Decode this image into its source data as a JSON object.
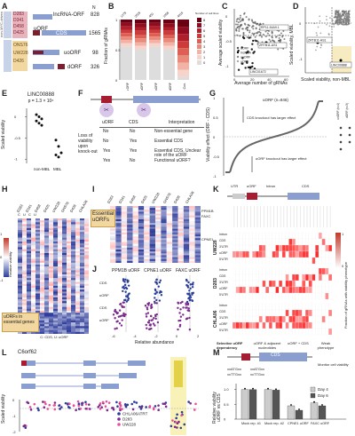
{
  "panels": {
    "A": {
      "label": "A",
      "non_myc_driven": "non-MYC-driven",
      "mbl_label": "MBL",
      "myc_driven": "MYC-driven",
      "group1": [
        "D283",
        "D341",
        "D458",
        "D425"
      ],
      "group2": [
        "ONS76",
        "UW228",
        "D426"
      ],
      "n_header": "N",
      "rows": [
        {
          "name": "lncRNA-ORF",
          "n": "828"
        },
        {
          "name": "uORF",
          "n": "1565"
        },
        {
          "name": "CDS",
          "n": ""
        },
        {
          "name": "uoORF",
          "n": "98"
        },
        {
          "name": "dORF",
          "n": "326"
        }
      ]
    },
    "B": {
      "label": "B",
      "ylabel": "Fraction of gRNAs",
      "yticks": [
        "1",
        "0.5",
        "0"
      ],
      "top_counts": [
        "1278",
        "2528",
        "450",
        "1058",
        "4018"
      ],
      "categories": [
        "lncRNA ORF",
        "uORF",
        "uoORF",
        "dORF",
        "Pos. Con."
      ],
      "legend_title": "Number of cell lines",
      "legend": [
        "8",
        "7",
        "6",
        "5",
        "4",
        "3",
        "2",
        "1",
        "0"
      ]
    },
    "C": {
      "label": "C",
      "ylabel": "Average scaled viability",
      "xlabel": "Average number of gRNAs",
      "yticks": [
        "0",
        "-0.5",
        "-1"
      ],
      "xticks": [
        "0",
        "20",
        "40",
        "60"
      ],
      "legend": [
        "dORF",
        "lncRNA",
        "uoORF",
        "uORF"
      ],
      "annotations": [
        "RP11-54A9.1",
        "ZRTB11-AS1",
        "LINC01672"
      ]
    },
    "D": {
      "label": "D",
      "ylabel": "Scaled viability, MBL",
      "xlabel": "Scaled viability, non-MBL",
      "annotations": [
        "ZRTB11-AS1",
        "LINC00888"
      ],
      "ticks": [
        "0",
        "-1"
      ]
    },
    "E": {
      "label": "E",
      "title": "LINC00888",
      "pvalue": "p = 1.3 × 10⁶",
      "ylabel": "Scaled viability",
      "yticks": [
        "0",
        "-0.5",
        "-1"
      ],
      "xticks": [
        "non-MBL",
        "MBL"
      ]
    },
    "F": {
      "label": "F",
      "orf_labels": [
        "uORF",
        "CDS"
      ],
      "col_headers": [
        "uORF",
        "CDS",
        "Interpretation"
      ],
      "row_header": "Loss of viability upon knock-out",
      "rows": [
        {
          "u": "No",
          "c": "No",
          "i": "Non-essential gene"
        },
        {
          "u": "No",
          "c": "Yes",
          "i": "Essential CDS"
        },
        {
          "u": "Yes",
          "c": "Yes",
          "i": "Essential CDS, Unclear role of the uORF"
        },
        {
          "u": "Yes",
          "c": "No",
          "i": "Functional uORF?"
        }
      ]
    },
    "G": {
      "label": "G",
      "ylabel": "Viability effect (ORF - CDS)",
      "series_label": "uORF (n=846)",
      "side_labels": [
        "uoORF (n=4)",
        "dORF (n=3)"
      ],
      "annot_top": "CDS knockout has larger effect",
      "annot_bottom": "uORF knockout has larger effect",
      "yticks": [
        "1",
        "0.5",
        "0",
        "-0.5",
        "-1"
      ]
    },
    "H": {
      "label": "H",
      "cell_lines": [
        "D283",
        "D341",
        "D458",
        "D425",
        "UW228",
        "ONS76",
        "D426",
        "CHLA06"
      ],
      "colhdr": "C U",
      "colorbar_title": "Relative viability",
      "colorbar_ticks": [
        "1",
        "0",
        "-1"
      ],
      "note": "uORFs in essential genes",
      "xnote": "C: CDS, U: uORF",
      "xnote2": "C U C U"
    },
    "I": {
      "label": "I",
      "callout": "Essential uORFs",
      "genes": [
        "PPM1B",
        "FAXC",
        "CPNE1"
      ],
      "cell_lines": [
        "D283",
        "D341",
        "D458",
        "D425",
        "UW228",
        "ONS76",
        "D426",
        "CHLA06"
      ]
    },
    "J": {
      "label": "J",
      "groups": [
        "PPM1B uORF",
        "CPNE1 uORF",
        "FAXC uORF"
      ],
      "rows": [
        "CDS",
        "uORF",
        "CDS",
        "uORF"
      ],
      "xlabel": "Relative abundance",
      "xticks": [
        "-6",
        "-4",
        "-2",
        "0",
        "2"
      ]
    },
    "K": {
      "label": "K",
      "top_labels": [
        "UTR",
        "uORF",
        "Intron",
        "CDS"
      ],
      "cell_lines": [
        "UW228",
        "D283",
        "CHLA06"
      ],
      "rows": [
        "Intron",
        "CDS",
        "3'UTR",
        "uORF",
        "5'UTR"
      ],
      "colorbar_title": "Fraction of gRNAs with viability phenotype",
      "colorbar_ticks": [
        "1",
        "0"
      ],
      "bottom_groups": [
        "Selective uORF dependency",
        "uORF & adjacent nucleotides",
        "uORF + CDS",
        "Weak phenotype"
      ]
    },
    "L": {
      "label": "L",
      "gene": "C6orf62",
      "ylabel": "Scaled viability",
      "yticks": [
        "0",
        "-1",
        "-2"
      ],
      "legend": [
        "CHLA06ATRT",
        "D283",
        "UW228"
      ]
    },
    "M": {
      "label": "M",
      "cds_label": "CDS",
      "grna_labels": [
        "xxATGxx",
        "xxATGxx",
        "xxTTGxx",
        "xxTTGxx"
      ],
      "monitor": "Monitor cell viability",
      "ylabel": "Relative viability uORF vs CDS",
      "yticks": [
        "1.0",
        "0.5",
        "0"
      ],
      "legend": [
        "Day 4",
        "Day 6"
      ],
      "xticks": [
        "Mock rep. #1",
        "Mock rep. #2",
        "CPNE1 uORF",
        "FAXC uORF"
      ]
    }
  },
  "chart_data": [
    {
      "panel": "B",
      "type": "bar",
      "categories": [
        "lncRNA ORF",
        "uORF",
        "uoORF",
        "dORF",
        "Pos. Con."
      ],
      "series": [
        {
          "name": "0",
          "values": [
            0.55,
            0.5,
            0.55,
            0.5,
            0.05
          ]
        }
      ],
      "ylabel": "Fraction of gRNAs",
      "ylim": [
        0,
        1
      ]
    },
    {
      "panel": "E",
      "type": "scatter",
      "categories": [
        "non-MBL",
        "MBL"
      ],
      "series": [
        {
          "name": "non-MBL",
          "values": [
            0.05,
            0.0,
            -0.05,
            -0.1,
            -0.15,
            -0.2
          ]
        },
        {
          "name": "MBL",
          "values": [
            -0.55,
            -0.7,
            -0.85,
            -0.9,
            -0.95
          ]
        }
      ],
      "ylabel": "Scaled viability",
      "ylim": [
        -1.1,
        0.2
      ]
    },
    {
      "panel": "M",
      "type": "bar",
      "categories": [
        "Mock rep. #1",
        "Mock rep. #2",
        "CPNE1 uORF",
        "FAXC uORF"
      ],
      "series": [
        {
          "name": "Day 4",
          "values": [
            1.0,
            1.0,
            0.45,
            0.55
          ]
        },
        {
          "name": "Day 6",
          "values": [
            1.0,
            0.98,
            0.3,
            0.45
          ]
        }
      ],
      "ylabel": "Relative viability uORF vs CDS",
      "ylim": [
        0,
        1.2
      ]
    }
  ]
}
